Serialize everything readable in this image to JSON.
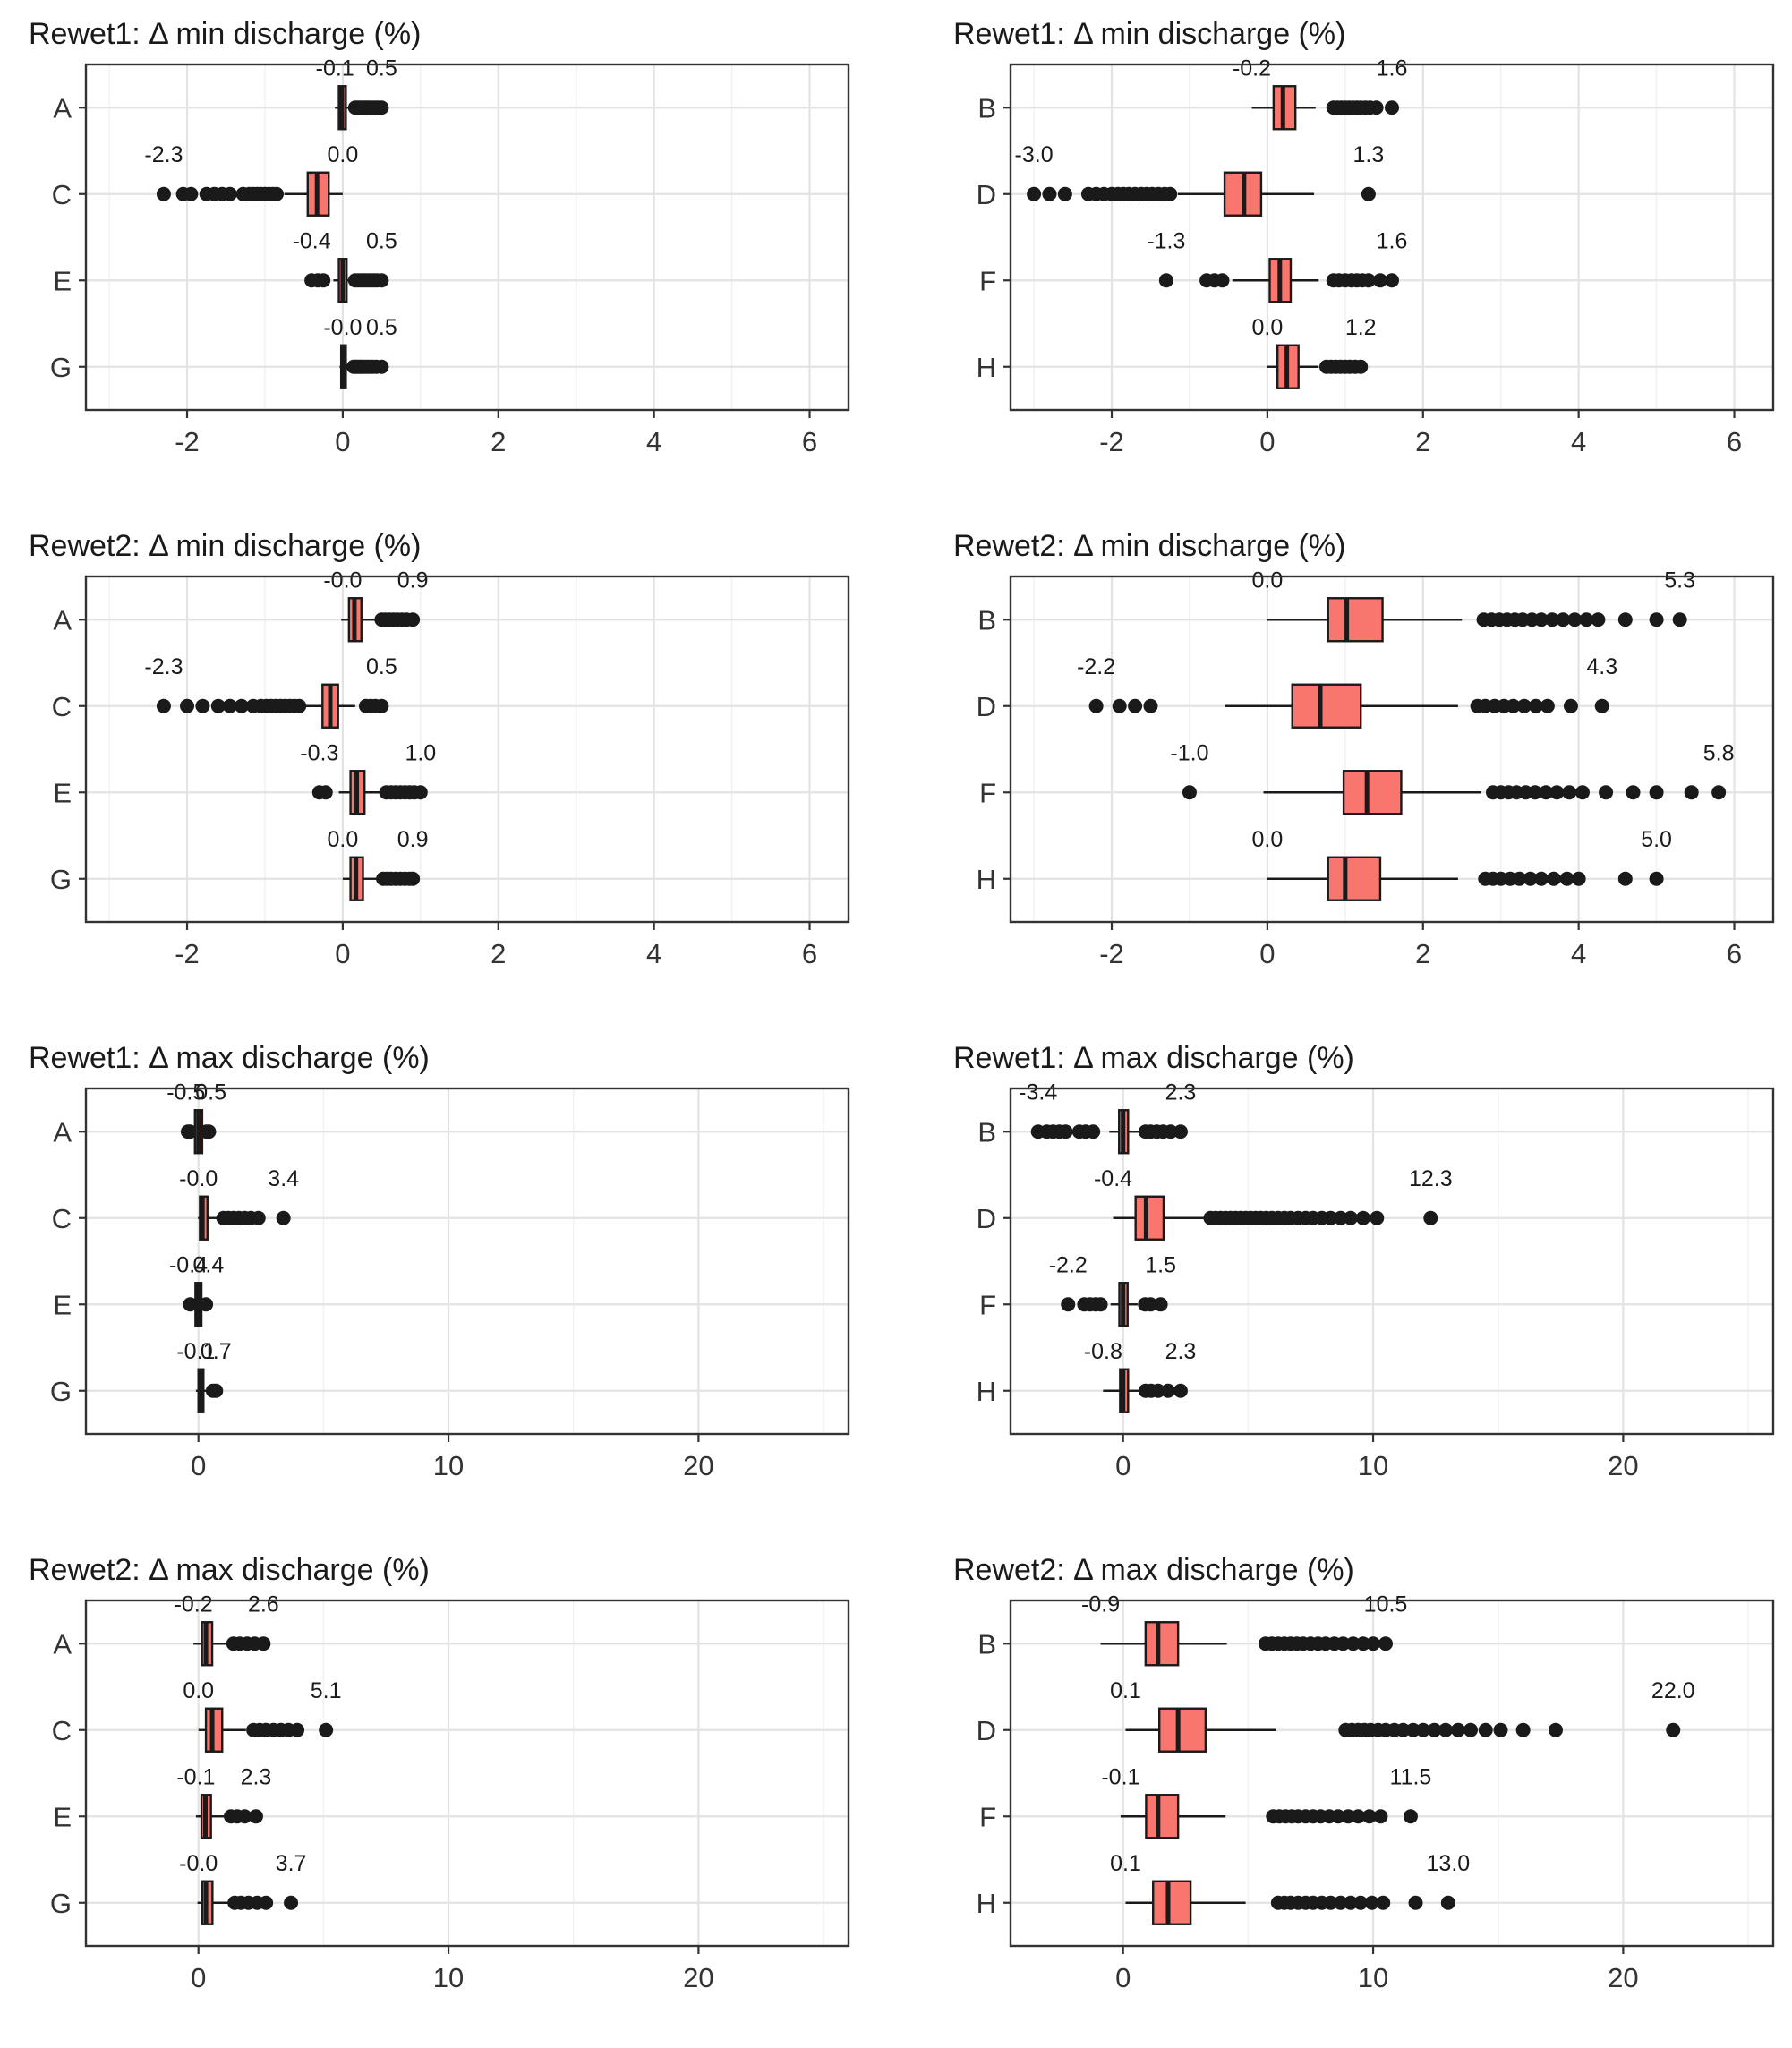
{
  "style": {
    "box_fill": "#F8766D",
    "box_stroke": "#1A1A1A",
    "point_color": "#1A1A1A",
    "grid_major": "#E3E3E3",
    "grid_minor": "#F2F2F2",
    "panel_border": "#333333",
    "axis_text": "#333333",
    "tick_color": "#333333",
    "label_color": "#1A1A1A",
    "panel_bg": "#FFFFFF"
  },
  "chart_data": [
    {
      "type": "boxplot",
      "orientation": "horizontal",
      "title": "Rewet1: Δ min discharge (%)",
      "xlim": [
        -3.3,
        6.5
      ],
      "xticks": [
        -2,
        0,
        2,
        4,
        6
      ],
      "xticks_minor": [
        -3,
        -1,
        1,
        3,
        5
      ],
      "groups": [
        {
          "category": "A",
          "min_label": "-0.1",
          "max_label": "0.5",
          "whisker_low": -0.1,
          "q1": -0.05,
          "median": -0.01,
          "q3": 0.04,
          "whisker_high": 0.1,
          "outliers": [
            0.16,
            0.19,
            0.22,
            0.25,
            0.28,
            0.31,
            0.34,
            0.38,
            0.42,
            0.46,
            0.5
          ]
        },
        {
          "category": "C",
          "min_label": "-2.3",
          "max_label": "0.0",
          "whisker_low": -0.75,
          "q1": -0.45,
          "median": -0.33,
          "q3": -0.18,
          "whisker_high": 0.0,
          "outliers": [
            -0.85,
            -0.9,
            -0.95,
            -1.0,
            -1.05,
            -1.1,
            -1.15,
            -1.2,
            -1.28,
            -1.45,
            -1.55,
            -1.65,
            -1.75,
            -1.95,
            -2.05,
            -2.3
          ]
        },
        {
          "category": "E",
          "min_label": "-0.4",
          "max_label": "0.5",
          "whisker_low": -0.12,
          "q1": -0.05,
          "median": 0.0,
          "q3": 0.05,
          "whisker_high": 0.12,
          "outliers": [
            -0.4,
            -0.32,
            -0.25,
            0.16,
            0.2,
            0.24,
            0.28,
            0.32,
            0.36,
            0.4,
            0.44,
            0.5
          ]
        },
        {
          "category": "G",
          "min_label": "-0.0",
          "max_label": "0.5",
          "whisker_low": -0.04,
          "q1": -0.02,
          "median": 0.0,
          "q3": 0.04,
          "whisker_high": 0.1,
          "outliers": [
            0.14,
            0.17,
            0.2,
            0.23,
            0.26,
            0.3,
            0.34,
            0.38,
            0.43,
            0.5
          ]
        }
      ]
    },
    {
      "type": "boxplot",
      "orientation": "horizontal",
      "title": "Rewet1: Δ min discharge (%)",
      "xlim": [
        -3.3,
        6.5
      ],
      "xticks": [
        -2,
        0,
        2,
        4,
        6
      ],
      "xticks_minor": [
        -3,
        -1,
        1,
        3,
        5
      ],
      "groups": [
        {
          "category": "B",
          "min_label": "-0.2",
          "max_label": "1.6",
          "whisker_low": -0.2,
          "q1": 0.08,
          "median": 0.2,
          "q3": 0.36,
          "whisker_high": 0.62,
          "outliers": [
            0.85,
            0.9,
            0.95,
            1.0,
            1.05,
            1.1,
            1.15,
            1.2,
            1.26,
            1.32,
            1.4,
            1.6
          ]
        },
        {
          "category": "D",
          "min_label": "-3.0",
          "max_label": "1.3",
          "whisker_low": -1.15,
          "q1": -0.55,
          "median": -0.3,
          "q3": -0.08,
          "whisker_high": 0.6,
          "outliers": [
            -1.25,
            -1.32,
            -1.4,
            -1.48,
            -1.55,
            -1.62,
            -1.7,
            -1.78,
            -1.85,
            -1.92,
            -2.0,
            -2.1,
            -2.2,
            -2.3,
            -2.6,
            -2.8,
            -3.0,
            1.3
          ]
        },
        {
          "category": "F",
          "min_label": "-1.3",
          "max_label": "1.6",
          "whisker_low": -0.45,
          "q1": 0.03,
          "median": 0.16,
          "q3": 0.3,
          "whisker_high": 0.66,
          "outliers": [
            -0.58,
            -0.68,
            -0.78,
            -1.3,
            0.85,
            0.92,
            1.0,
            1.08,
            1.15,
            1.22,
            1.3,
            1.45,
            1.6
          ]
        },
        {
          "category": "H",
          "min_label": "0.0",
          "max_label": "1.2",
          "whisker_low": 0.0,
          "q1": 0.13,
          "median": 0.25,
          "q3": 0.4,
          "whisker_high": 0.66,
          "outliers": [
            0.76,
            0.82,
            0.88,
            0.94,
            1.0,
            1.06,
            1.13,
            1.2
          ]
        }
      ]
    },
    {
      "type": "boxplot",
      "orientation": "horizontal",
      "title": "Rewet2: Δ min discharge (%)",
      "xlim": [
        -3.3,
        6.5
      ],
      "xticks": [
        -2,
        0,
        2,
        4,
        6
      ],
      "xticks_minor": [
        -3,
        -1,
        1,
        3,
        5
      ],
      "groups": [
        {
          "category": "A",
          "min_label": "-0.0",
          "max_label": "0.9",
          "whisker_low": -0.02,
          "q1": 0.08,
          "median": 0.15,
          "q3": 0.24,
          "whisker_high": 0.42,
          "outliers": [
            0.5,
            0.55,
            0.6,
            0.65,
            0.7,
            0.76,
            0.82,
            0.9
          ]
        },
        {
          "category": "C",
          "min_label": "-2.3",
          "max_label": "0.5",
          "whisker_low": -0.48,
          "q1": -0.26,
          "median": -0.16,
          "q3": -0.06,
          "whisker_high": 0.16,
          "outliers": [
            -0.56,
            -0.62,
            -0.68,
            -0.74,
            -0.8,
            -0.86,
            -0.92,
            -0.98,
            -1.05,
            -1.15,
            -1.3,
            -1.45,
            -1.6,
            -1.8,
            -2.0,
            -2.3,
            0.3,
            0.36,
            0.42,
            0.5
          ]
        },
        {
          "category": "E",
          "min_label": "-0.3",
          "max_label": "1.0",
          "whisker_low": -0.05,
          "q1": 0.1,
          "median": 0.18,
          "q3": 0.28,
          "whisker_high": 0.48,
          "outliers": [
            -0.3,
            -0.22,
            0.56,
            0.62,
            0.68,
            0.74,
            0.8,
            0.86,
            0.92,
            1.0
          ]
        },
        {
          "category": "G",
          "min_label": "0.0",
          "max_label": "0.9",
          "whisker_low": 0.0,
          "q1": 0.1,
          "median": 0.17,
          "q3": 0.26,
          "whisker_high": 0.44,
          "outliers": [
            0.52,
            0.57,
            0.62,
            0.68,
            0.74,
            0.8,
            0.86,
            0.9
          ]
        }
      ]
    },
    {
      "type": "boxplot",
      "orientation": "horizontal",
      "title": "Rewet2: Δ min discharge (%)",
      "xlim": [
        -3.3,
        6.5
      ],
      "xticks": [
        -2,
        0,
        2,
        4,
        6
      ],
      "xticks_minor": [
        -3,
        -1,
        1,
        3,
        5
      ],
      "groups": [
        {
          "category": "B",
          "min_label": "0.0",
          "max_label": "5.3",
          "whisker_low": 0.0,
          "q1": 0.78,
          "median": 1.02,
          "q3": 1.48,
          "whisker_high": 2.5,
          "outliers": [
            2.78,
            2.88,
            2.98,
            3.08,
            3.18,
            3.28,
            3.4,
            3.52,
            3.66,
            3.8,
            3.95,
            4.1,
            4.25,
            4.6,
            5.0,
            5.3
          ]
        },
        {
          "category": "D",
          "min_label": "-2.2",
          "max_label": "4.3",
          "whisker_low": -0.55,
          "q1": 0.32,
          "median": 0.68,
          "q3": 1.2,
          "whisker_high": 2.45,
          "outliers": [
            -1.5,
            -1.7,
            -1.9,
            -2.2,
            2.7,
            2.8,
            2.92,
            3.04,
            3.16,
            3.3,
            3.45,
            3.6,
            3.9,
            4.3
          ]
        },
        {
          "category": "F",
          "min_label": "-1.0",
          "max_label": "5.8",
          "whisker_low": -0.05,
          "q1": 0.98,
          "median": 1.28,
          "q3": 1.72,
          "whisker_high": 2.75,
          "outliers": [
            -1.0,
            2.9,
            3.0,
            3.1,
            3.2,
            3.32,
            3.44,
            3.58,
            3.72,
            3.88,
            4.05,
            4.35,
            4.7,
            5.0,
            5.45,
            5.8
          ]
        },
        {
          "category": "H",
          "min_label": "0.0",
          "max_label": "5.0",
          "whisker_low": 0.0,
          "q1": 0.78,
          "median": 1.0,
          "q3": 1.45,
          "whisker_high": 2.45,
          "outliers": [
            2.8,
            2.9,
            3.0,
            3.12,
            3.24,
            3.38,
            3.52,
            3.68,
            3.85,
            4.0,
            4.6,
            5.0
          ]
        }
      ]
    },
    {
      "type": "boxplot",
      "orientation": "horizontal",
      "title": "Rewet1: Δ max discharge (%)",
      "xlim": [
        -4.5,
        26
      ],
      "xticks": [
        0,
        10,
        20
      ],
      "xticks_minor": [
        5,
        15,
        25
      ],
      "groups": [
        {
          "category": "A",
          "min_label": "-0.5",
          "max_label": "0.5",
          "whisker_low": -0.5,
          "q1": -0.14,
          "median": 0.0,
          "q3": 0.15,
          "whisker_high": 0.5,
          "outliers": [
            -0.42,
            -0.34,
            0.32,
            0.42
          ]
        },
        {
          "category": "C",
          "min_label": "-0.0",
          "max_label": "3.4",
          "whisker_low": -0.02,
          "q1": 0.06,
          "median": 0.16,
          "q3": 0.36,
          "whisker_high": 0.78,
          "outliers": [
            1.0,
            1.2,
            1.4,
            1.62,
            1.85,
            2.1,
            2.4,
            3.4
          ]
        },
        {
          "category": "E",
          "min_label": "-0.4",
          "max_label": "0.4",
          "whisker_low": -0.4,
          "q1": -0.12,
          "median": 0.0,
          "q3": 0.12,
          "whisker_high": 0.4,
          "outliers": [
            -0.33,
            0.3
          ]
        },
        {
          "category": "G",
          "min_label": "-0.1",
          "max_label": "0.7",
          "whisker_low": -0.1,
          "q1": 0.0,
          "median": 0.08,
          "q3": 0.2,
          "whisker_high": 0.46,
          "outliers": [
            0.58,
            0.7
          ]
        }
      ]
    },
    {
      "type": "boxplot",
      "orientation": "horizontal",
      "title": "Rewet1: Δ max discharge (%)",
      "xlim": [
        -4.5,
        26
      ],
      "xticks": [
        0,
        10,
        20
      ],
      "xticks_minor": [
        5,
        15,
        25
      ],
      "groups": [
        {
          "category": "B",
          "min_label": "-3.4",
          "max_label": "2.3",
          "whisker_low": -0.55,
          "q1": -0.16,
          "median": 0.0,
          "q3": 0.2,
          "whisker_high": 0.62,
          "outliers": [
            -1.2,
            -1.5,
            -1.75,
            -2.3,
            -2.55,
            -2.8,
            -3.05,
            -3.4,
            0.9,
            1.1,
            1.35,
            1.6,
            1.9,
            2.3
          ]
        },
        {
          "category": "D",
          "min_label": "-0.4",
          "max_label": "12.3",
          "whisker_low": -0.4,
          "q1": 0.5,
          "median": 0.92,
          "q3": 1.62,
          "whisker_high": 3.25,
          "outliers": [
            3.5,
            3.7,
            3.9,
            4.1,
            4.3,
            4.5,
            4.7,
            4.9,
            5.1,
            5.3,
            5.5,
            5.72,
            5.95,
            6.2,
            6.45,
            6.7,
            7.0,
            7.3,
            7.6,
            7.95,
            8.3,
            8.7,
            9.1,
            9.6,
            10.15,
            12.3
          ]
        },
        {
          "category": "F",
          "min_label": "-2.2",
          "max_label": "1.5",
          "whisker_low": -0.5,
          "q1": -0.15,
          "median": 0.0,
          "q3": 0.18,
          "whisker_high": 0.58,
          "outliers": [
            -0.9,
            -1.1,
            -1.32,
            -1.55,
            -2.2,
            0.88,
            1.1,
            1.5
          ]
        },
        {
          "category": "H",
          "min_label": "-0.8",
          "max_label": "2.3",
          "whisker_low": -0.8,
          "q1": -0.12,
          "median": 0.0,
          "q3": 0.2,
          "whisker_high": 0.62,
          "outliers": [
            0.9,
            1.12,
            1.4,
            1.8,
            2.3
          ]
        }
      ]
    },
    {
      "type": "boxplot",
      "orientation": "horizontal",
      "title": "Rewet2: Δ max discharge (%)",
      "xlim": [
        -4.5,
        26
      ],
      "xticks": [
        0,
        10,
        20
      ],
      "xticks_minor": [
        5,
        15,
        25
      ],
      "groups": [
        {
          "category": "A",
          "min_label": "-0.2",
          "max_label": "2.6",
          "whisker_low": -0.2,
          "q1": 0.14,
          "median": 0.3,
          "q3": 0.55,
          "whisker_high": 1.15,
          "outliers": [
            1.4,
            1.65,
            1.95,
            2.25,
            2.6
          ]
        },
        {
          "category": "C",
          "min_label": "0.0",
          "max_label": "5.1",
          "whisker_low": 0.0,
          "q1": 0.3,
          "median": 0.55,
          "q3": 0.95,
          "whisker_high": 1.9,
          "outliers": [
            2.2,
            2.45,
            2.7,
            3.0,
            3.3,
            3.6,
            3.95,
            5.1
          ]
        },
        {
          "category": "E",
          "min_label": "-0.1",
          "max_label": "2.3",
          "whisker_low": -0.1,
          "q1": 0.12,
          "median": 0.28,
          "q3": 0.5,
          "whisker_high": 1.05,
          "outliers": [
            1.3,
            1.55,
            1.85,
            2.3
          ]
        },
        {
          "category": "G",
          "min_label": "-0.0",
          "max_label": "3.7",
          "whisker_low": -0.04,
          "q1": 0.15,
          "median": 0.3,
          "q3": 0.56,
          "whisker_high": 1.18,
          "outliers": [
            1.45,
            1.7,
            2.0,
            2.35,
            2.7,
            3.7
          ]
        }
      ]
    },
    {
      "type": "boxplot",
      "orientation": "horizontal",
      "title": "Rewet2: Δ max discharge (%)",
      "xlim": [
        -4.5,
        26
      ],
      "xticks": [
        0,
        10,
        20
      ],
      "xticks_minor": [
        5,
        15,
        25
      ],
      "groups": [
        {
          "category": "B",
          "min_label": "-0.9",
          "max_label": "10.5",
          "whisker_low": -0.9,
          "q1": 0.9,
          "median": 1.4,
          "q3": 2.2,
          "whisker_high": 4.15,
          "outliers": [
            5.7,
            5.95,
            6.2,
            6.45,
            6.7,
            6.95,
            7.2,
            7.5,
            7.8,
            8.1,
            8.45,
            8.8,
            9.2,
            9.6,
            10.0,
            10.5
          ]
        },
        {
          "category": "D",
          "min_label": "0.1",
          "max_label": "22.0",
          "whisker_low": 0.1,
          "q1": 1.45,
          "median": 2.2,
          "q3": 3.3,
          "whisker_high": 6.1,
          "outliers": [
            8.9,
            9.15,
            9.4,
            9.65,
            9.9,
            10.2,
            10.5,
            10.85,
            11.2,
            11.6,
            12.0,
            12.45,
            12.9,
            13.4,
            13.9,
            14.5,
            15.1,
            16.0,
            17.3,
            22.0
          ]
        },
        {
          "category": "F",
          "min_label": "-0.1",
          "max_label": "11.5",
          "whisker_low": -0.1,
          "q1": 0.92,
          "median": 1.4,
          "q3": 2.2,
          "whisker_high": 4.1,
          "outliers": [
            6.0,
            6.25,
            6.5,
            6.75,
            7.0,
            7.3,
            7.6,
            7.9,
            8.25,
            8.6,
            9.0,
            9.4,
            9.85,
            10.3,
            11.5
          ]
        },
        {
          "category": "H",
          "min_label": "0.1",
          "max_label": "13.0",
          "whisker_low": 0.1,
          "q1": 1.2,
          "median": 1.8,
          "q3": 2.7,
          "whisker_high": 4.9,
          "outliers": [
            6.2,
            6.45,
            6.7,
            7.0,
            7.3,
            7.6,
            7.95,
            8.3,
            8.7,
            9.1,
            9.5,
            9.95,
            10.4,
            11.7,
            13.0
          ]
        }
      ]
    }
  ]
}
